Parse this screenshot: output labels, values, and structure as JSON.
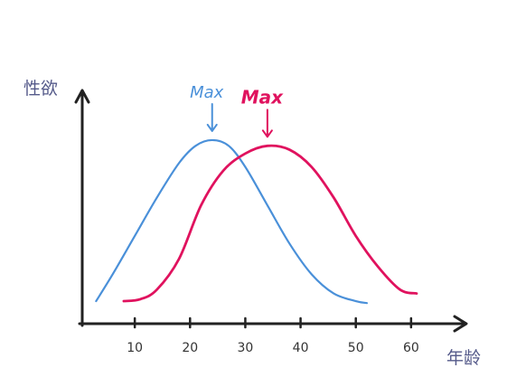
{
  "chart_data": {
    "type": "line",
    "title": "",
    "xlabel": "年龄",
    "ylabel": "性欲",
    "x_ticks": [
      "10",
      "20",
      "30",
      "40",
      "50",
      "60"
    ],
    "xlim": [
      0,
      70
    ],
    "ylim": [
      0,
      1
    ],
    "grid": false,
    "series": [
      {
        "color": "#4a90d9",
        "annotation": "Max",
        "points": [
          [
            3,
            0.08
          ],
          [
            6,
            0.22
          ],
          [
            10,
            0.42
          ],
          [
            14,
            0.62
          ],
          [
            18,
            0.8
          ],
          [
            21,
            0.89
          ],
          [
            24,
            0.92
          ],
          [
            27,
            0.89
          ],
          [
            30,
            0.78
          ],
          [
            34,
            0.58
          ],
          [
            38,
            0.38
          ],
          [
            42,
            0.22
          ],
          [
            46,
            0.12
          ],
          [
            50,
            0.08
          ],
          [
            52,
            0.07
          ]
        ]
      },
      {
        "color": "#e0125e",
        "annotation": "Max",
        "points": [
          [
            8,
            0.08
          ],
          [
            11,
            0.09
          ],
          [
            14,
            0.14
          ],
          [
            18,
            0.3
          ],
          [
            22,
            0.58
          ],
          [
            26,
            0.76
          ],
          [
            30,
            0.85
          ],
          [
            34,
            0.89
          ],
          [
            38,
            0.87
          ],
          [
            42,
            0.78
          ],
          [
            46,
            0.62
          ],
          [
            50,
            0.42
          ],
          [
            54,
            0.26
          ],
          [
            58,
            0.14
          ],
          [
            61,
            0.12
          ]
        ]
      }
    ]
  }
}
